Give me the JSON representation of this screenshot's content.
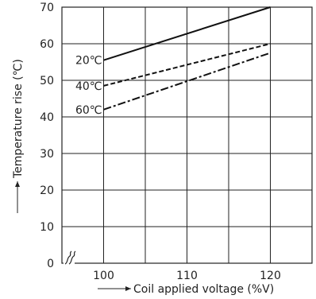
{
  "chart_data": {
    "type": "line",
    "xlabel": "Coil applied voltage (%V)",
    "ylabel": "Temperature rise (℃)",
    "xlim": [
      95,
      125
    ],
    "ylim": [
      0,
      70
    ],
    "x_ticks": [
      "100",
      "110",
      "120"
    ],
    "y_ticks": [
      "0",
      "10",
      "20",
      "30",
      "40",
      "50",
      "60",
      "70"
    ],
    "grid": true,
    "x_axis_break": true,
    "series": [
      {
        "name": "20℃",
        "style": "solid",
        "x": [
          100,
          120
        ],
        "y": [
          55.5,
          70
        ]
      },
      {
        "name": "40℃",
        "style": "dashed",
        "x": [
          100,
          120
        ],
        "y": [
          48.5,
          60
        ]
      },
      {
        "name": "60℃",
        "style": "dash-dot",
        "x": [
          100,
          120
        ],
        "y": [
          42,
          57.5
        ]
      }
    ]
  }
}
